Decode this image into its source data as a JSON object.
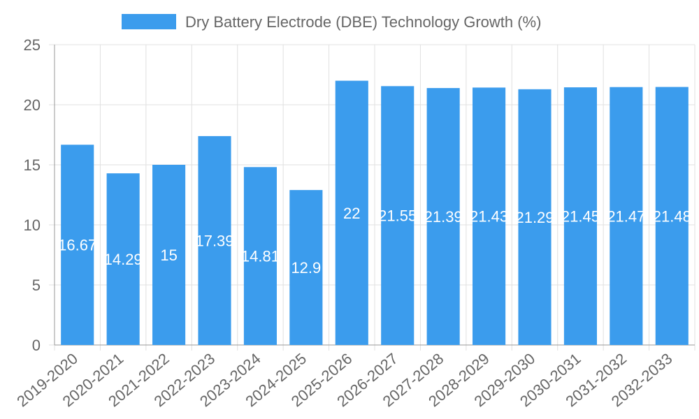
{
  "chart_data": {
    "type": "bar",
    "title": "",
    "xlabel": "",
    "ylabel": "",
    "legend": {
      "position": "top",
      "entries": [
        "Dry Battery Electrode (DBE) Technology Growth (%)"
      ]
    },
    "categories": [
      "2019-2020",
      "2020-2021",
      "2021-2022",
      "2022-2023",
      "2023-2024",
      "2024-2025",
      "2025-2026",
      "2026-2027",
      "2027-2028",
      "2028-2029",
      "2029-2030",
      "2030-2031",
      "2031-2032",
      "2032-2033"
    ],
    "series": [
      {
        "name": "Dry Battery Electrode (DBE) Technology Growth (%)",
        "values": [
          16.67,
          14.29,
          15,
          17.39,
          14.81,
          12.9,
          22,
          21.55,
          21.39,
          21.43,
          21.29,
          21.45,
          21.47,
          21.48
        ],
        "data_labels": [
          "16.67",
          "14.29",
          "15",
          "17.39",
          "14.81",
          "12.9",
          "22",
          "21.55",
          "21.39",
          "21.43",
          "21.29",
          "21.45",
          "21.47",
          "21.48"
        ]
      }
    ],
    "ylim": [
      0,
      25
    ],
    "yticks": [
      0,
      5,
      10,
      15,
      20,
      25
    ],
    "ytick_labels": [
      "0",
      "5",
      "10",
      "15",
      "20",
      "25"
    ],
    "grid": true,
    "colors": {
      "bar": "#3b9ced",
      "grid": "#e0e0e0",
      "axis": "#999999",
      "text": "#666666",
      "label": "#ffffff"
    }
  }
}
